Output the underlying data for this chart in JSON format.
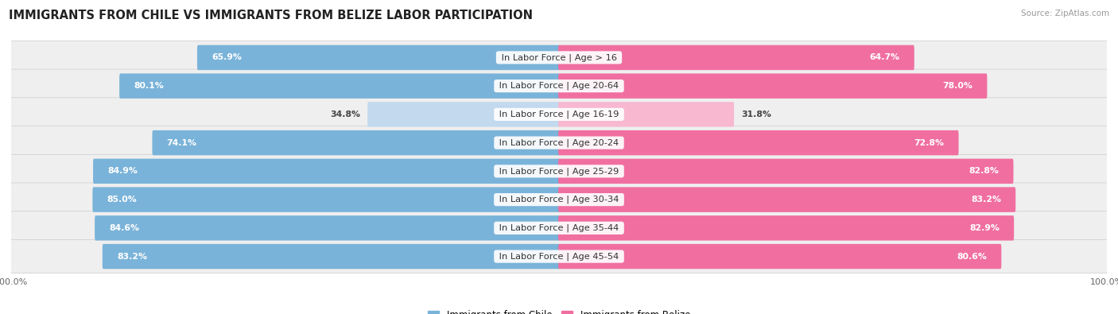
{
  "title": "IMMIGRANTS FROM CHILE VS IMMIGRANTS FROM BELIZE LABOR PARTICIPATION",
  "source": "Source: ZipAtlas.com",
  "categories": [
    "In Labor Force | Age > 16",
    "In Labor Force | Age 20-64",
    "In Labor Force | Age 16-19",
    "In Labor Force | Age 20-24",
    "In Labor Force | Age 25-29",
    "In Labor Force | Age 30-34",
    "In Labor Force | Age 35-44",
    "In Labor Force | Age 45-54"
  ],
  "chile_values": [
    65.9,
    80.1,
    34.8,
    74.1,
    84.9,
    85.0,
    84.6,
    83.2
  ],
  "belize_values": [
    64.7,
    78.0,
    31.8,
    72.8,
    82.8,
    83.2,
    82.9,
    80.6
  ],
  "chile_color": "#7ab3d9",
  "chile_color_light": "#c2d9ee",
  "belize_color": "#f06fa0",
  "belize_color_light": "#f7b8d0",
  "row_bg": "#efefef",
  "max_value": 100.0,
  "legend_chile": "Immigrants from Chile",
  "legend_belize": "Immigrants from Belize",
  "title_fontsize": 10.5,
  "label_fontsize": 8.2,
  "value_fontsize": 7.8
}
